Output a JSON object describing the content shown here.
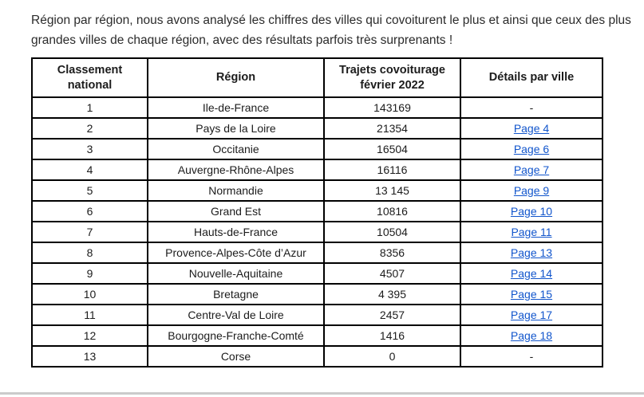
{
  "intro_text": "Région par région, nous avons analysé les chiffres des villes qui covoiturent le plus et ainsi que ceux des plus grandes villes de chaque région, avec des résultats parfois très surprenants !",
  "colors": {
    "link": "#1155cc",
    "table_border": "#000000",
    "text": "#1c1c1c"
  },
  "table": {
    "headers": [
      "Classement national",
      "Région",
      "Trajets covoiturage février 2022",
      "Détails par ville"
    ],
    "rows": [
      {
        "rank": "1",
        "region": "Ile-de-France",
        "trips": "143169",
        "details": "-"
      },
      {
        "rank": "2",
        "region": "Pays de la Loire",
        "trips": "21354",
        "details": "Page 4"
      },
      {
        "rank": "3",
        "region": "Occitanie",
        "trips": "16504",
        "details": "Page 6"
      },
      {
        "rank": "4",
        "region": "Auvergne-Rhône-Alpes",
        "trips": "16116",
        "details": "Page 7"
      },
      {
        "rank": "5",
        "region": "Normandie",
        "trips": "13 145",
        "details": "Page 9"
      },
      {
        "rank": "6",
        "region": "Grand Est",
        "trips": "10816",
        "details": "Page 10"
      },
      {
        "rank": "7",
        "region": "Hauts-de-France",
        "trips": "10504",
        "details": "Page 11"
      },
      {
        "rank": "8",
        "region": "Provence-Alpes-Côte d’Azur",
        "trips": "8356",
        "details": "Page 13"
      },
      {
        "rank": "9",
        "region": "Nouvelle-Aquitaine",
        "trips": "4507",
        "details": "Page 14"
      },
      {
        "rank": "10",
        "region": "Bretagne",
        "trips": "4 395",
        "details": "Page 15"
      },
      {
        "rank": "11",
        "region": "Centre-Val de Loire",
        "trips": "2457",
        "details": "Page 17"
      },
      {
        "rank": "12",
        "region": "Bourgogne-Franche-Comté",
        "trips": "1416",
        "details": "Page 18"
      },
      {
        "rank": "13",
        "region": "Corse",
        "trips": "0",
        "details": "-"
      }
    ]
  }
}
